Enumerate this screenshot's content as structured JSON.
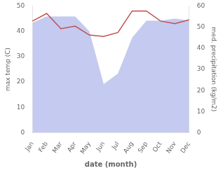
{
  "chart_data": {
    "type": "line",
    "categories": [
      "Jan",
      "Feb",
      "Mar",
      "Apr",
      "May",
      "Jun",
      "Jul",
      "Aug",
      "Sep",
      "Oct",
      "Nov",
      "Dec"
    ],
    "series": [
      {
        "type": "line",
        "color": "#c0504d",
        "values": [
          44,
          47,
          41,
          42,
          38.5,
          38,
          39.5,
          48,
          48,
          44,
          43,
          44.5
        ]
      },
      {
        "type": "area",
        "color": "#c5caf0",
        "axis": "y2",
        "values": [
          52,
          55,
          55,
          55,
          48,
          23,
          28,
          45,
          53,
          53,
          54,
          53
        ]
      }
    ],
    "xlabel": "date (month)",
    "ylabel": "max temp (C)",
    "y2label": "med. precipitation (kg/m2)",
    "ylim": [
      0,
      50
    ],
    "yticks": [
      0,
      10,
      20,
      30,
      40,
      50
    ],
    "y2lim": [
      0,
      60
    ],
    "y2ticks": [
      0,
      10,
      20,
      30,
      40,
      50,
      60
    ],
    "grid": false
  }
}
